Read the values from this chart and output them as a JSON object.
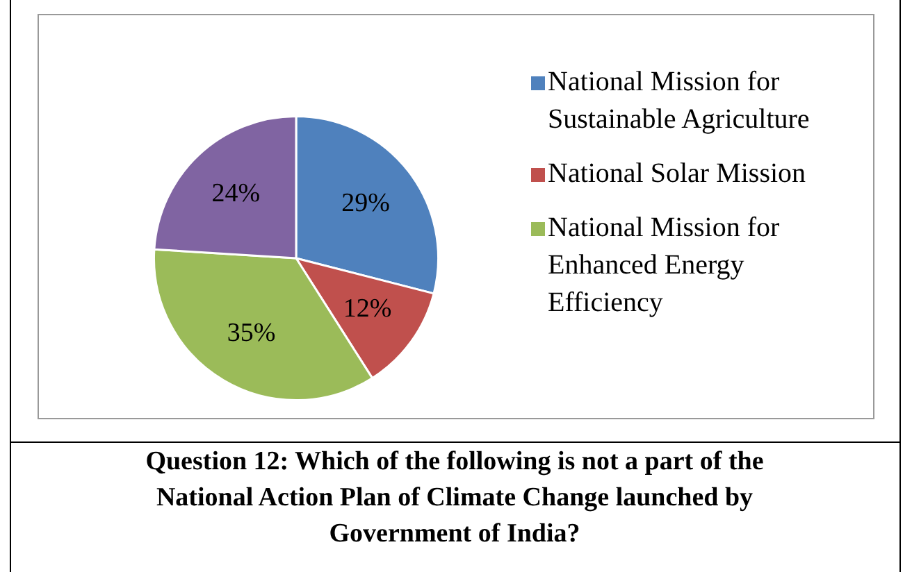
{
  "chart_data": {
    "type": "pie",
    "categories": [
      "National Mission for Sustainable Agriculture",
      "National Solar Mission",
      "National Mission for Enhanced Energy Efficiency",
      null
    ],
    "values": [
      29,
      12,
      35,
      24
    ],
    "colors": [
      "#4f81bd",
      "#c0504d",
      "#9bbb59",
      "#8064a2"
    ],
    "value_labels": [
      "29%",
      "12%",
      "35%",
      "24%"
    ],
    "legend": "right",
    "annotations": [
      "Question 12: Which of the following is not a part of the National Action Plan of Climate Change launched by Government of India?"
    ]
  }
}
